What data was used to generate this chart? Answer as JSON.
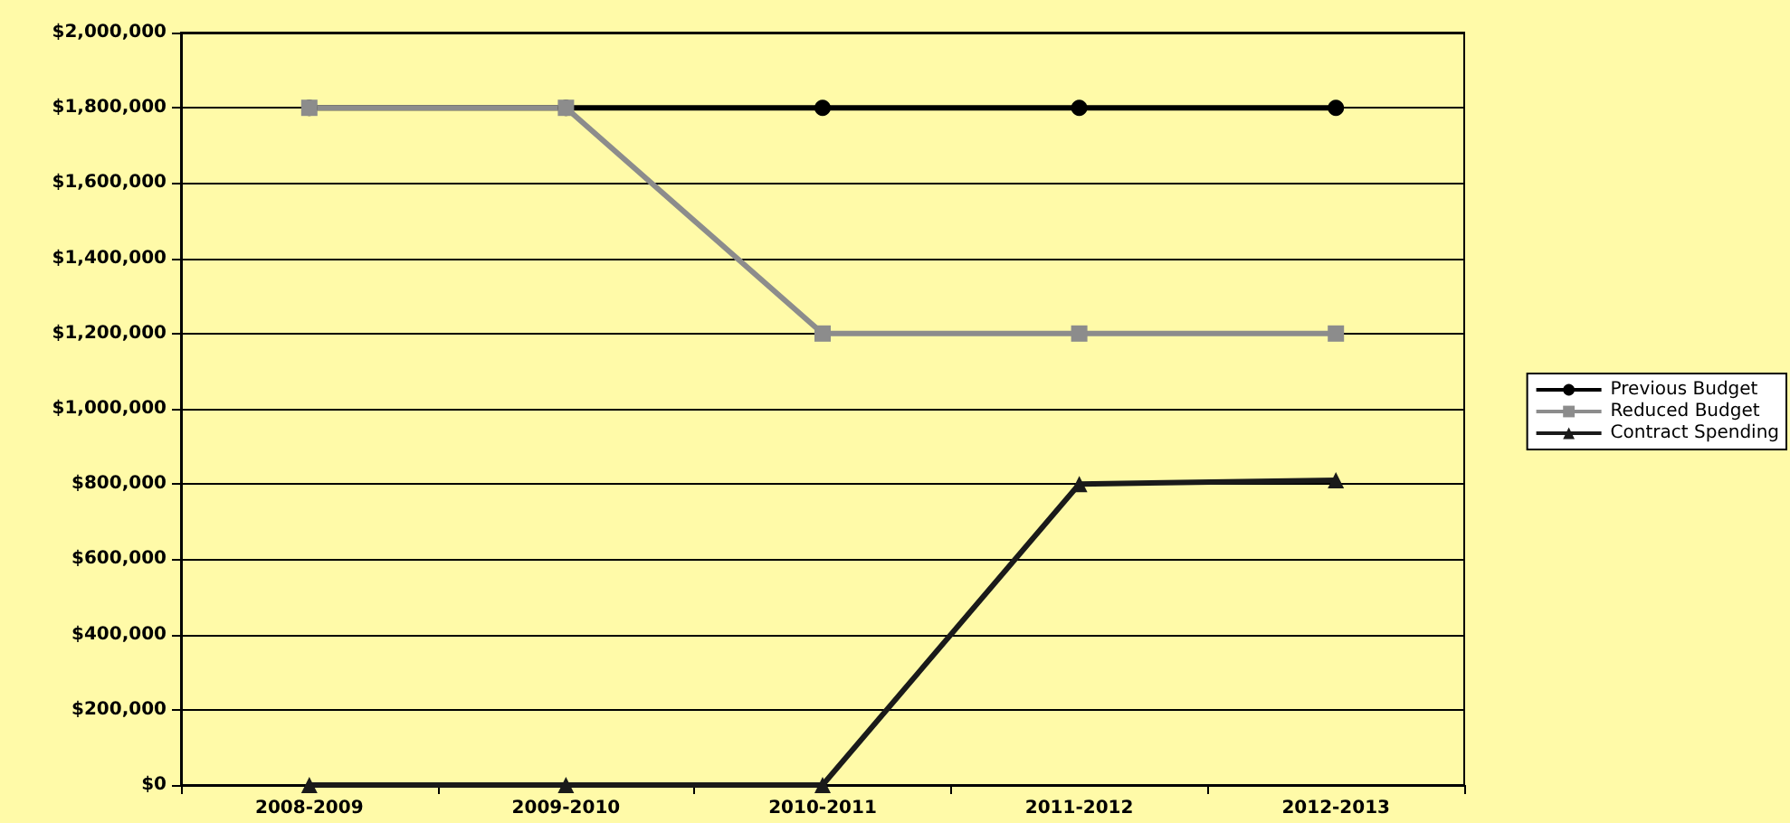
{
  "chart_data": {
    "type": "line",
    "categories": [
      "2008-2009",
      "2009-2010",
      "2010-2011",
      "2011-2012",
      "2012-2013"
    ],
    "series": [
      {
        "name": "Previous Budget",
        "color": "#000000",
        "marker": "circle",
        "values": [
          1800000,
          1800000,
          1800000,
          1800000,
          1800000
        ]
      },
      {
        "name": "Reduced Budget",
        "color": "#8c8c8c",
        "marker": "square",
        "values": [
          1800000,
          1800000,
          1200000,
          1200000,
          1200000
        ]
      },
      {
        "name": "Contract Spending",
        "color": "#1a1a1a",
        "marker": "triangle",
        "values": [
          0,
          0,
          0,
          800000,
          810000
        ]
      }
    ],
    "ylim": [
      0,
      2000000
    ],
    "yticks": [
      {
        "value": 0,
        "label": "$0"
      },
      {
        "value": 200000,
        "label": "$200,000"
      },
      {
        "value": 400000,
        "label": "$400,000"
      },
      {
        "value": 600000,
        "label": "$600,000"
      },
      {
        "value": 800000,
        "label": "$800,000"
      },
      {
        "value": 1000000,
        "label": "$1,000,000"
      },
      {
        "value": 1200000,
        "label": "$1,200,000"
      },
      {
        "value": 1400000,
        "label": "$1,400,000"
      },
      {
        "value": 1600000,
        "label": "$1,600,000"
      },
      {
        "value": 1800000,
        "label": "$1,800,000"
      },
      {
        "value": 2000000,
        "label": "$2,000,000"
      }
    ],
    "grid": "y",
    "legend": "right"
  }
}
